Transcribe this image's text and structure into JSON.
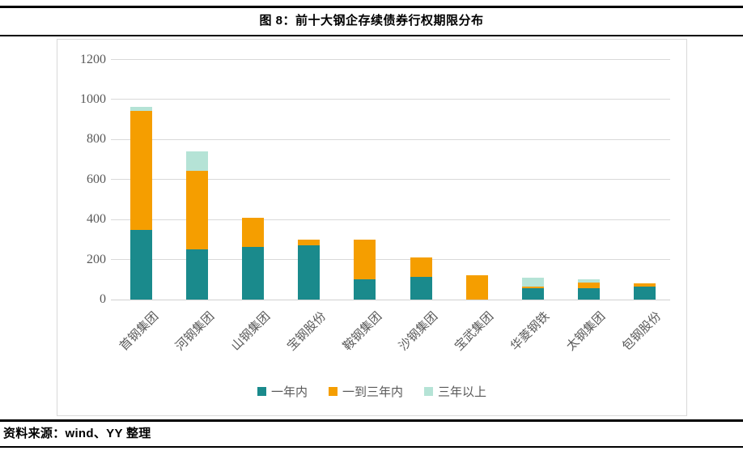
{
  "figure": {
    "title": "图 8：前十大钢企存续债券行权期限分布",
    "source": "资料来源：wind、YY 整理"
  },
  "chart_data": {
    "type": "bar",
    "stacked": true,
    "title": "图 8：前十大钢企存续债券行权期限分布",
    "xlabel": "",
    "ylabel": "",
    "ylim": [
      0,
      1200
    ],
    "yticks": [
      0,
      200,
      400,
      600,
      800,
      1000,
      1200
    ],
    "grid": true,
    "legend_position": "bottom",
    "categories": [
      "首钢集团",
      "河钢集团",
      "山钢集团",
      "宝钢股份",
      "鞍钢集团",
      "沙钢集团",
      "宝武集团",
      "华菱钢铁",
      "太钢集团",
      "包钢股份"
    ],
    "series": [
      {
        "name": "一年内",
        "color": "#1a8a8c",
        "values": [
          350,
          250,
          265,
          270,
          100,
          115,
          0,
          55,
          55,
          65
        ]
      },
      {
        "name": "一到三年内",
        "color": "#f59e00",
        "values": [
          595,
          395,
          145,
          30,
          200,
          95,
          120,
          10,
          30,
          15
        ]
      },
      {
        "name": "三年以上",
        "color": "#b5e3d6",
        "values": [
          20,
          95,
          0,
          0,
          0,
          0,
          0,
          45,
          15,
          0
        ]
      }
    ]
  },
  "colors": {
    "within_one_year": "#1a8a8c",
    "one_to_three_years": "#f59e00",
    "over_three_years": "#b5e3d6",
    "gridline": "#d9d9d9",
    "axis_text": "#595959",
    "rule": "#000000",
    "panel_border": "#d9d9d9"
  }
}
